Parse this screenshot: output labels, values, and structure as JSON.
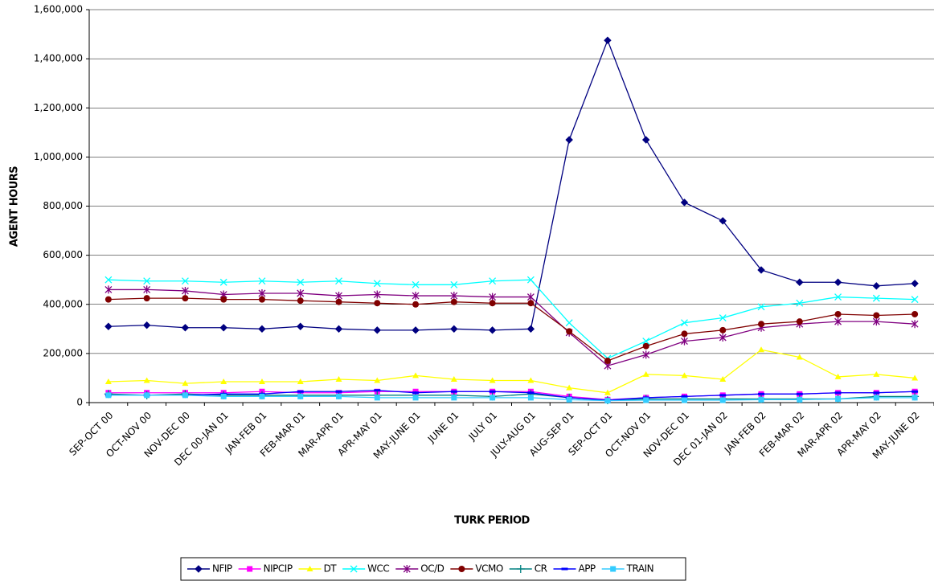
{
  "chart_data": {
    "type": "line",
    "xlabel": "TURK PERIOD",
    "ylabel": "AGENT HOURS",
    "categories": [
      "SEP-OCT 00",
      "OCT-NOV 00",
      "NOV-DEC 00",
      "DEC 00-JAN 01",
      "JAN-FEB 01",
      "FEB-MAR 01",
      "MAR-APR 01",
      "APR-MAY 01",
      "MAY-JUNE 01",
      "JUNE 01",
      "JULY 01",
      "JULY-AUG 01",
      "AUG-SEP 01",
      "SEP-OCT 01",
      "OCT-NOV 01",
      "NOV-DEC 01",
      "DEC 01-JAN 02",
      "JAN-FEB 02",
      "FEB-MAR 02",
      "MAR-APR 02",
      "APR-MAY 02",
      "MAY-JUNE 02"
    ],
    "ylim": [
      0,
      1600000
    ],
    "yticks": [
      0,
      {
        "value": 200000,
        "label": "200,000"
      },
      {
        "value": 400000,
        "label": "400,000"
      },
      {
        "value": 600000,
        "label": "600,000"
      },
      {
        "value": 800000,
        "label": "800,000"
      },
      {
        "value": 1000000,
        "label": "1,000,000"
      },
      {
        "value": 1200000,
        "label": "1,200,000"
      },
      {
        "value": 1400000,
        "label": "1,400,000"
      },
      {
        "value": 1600000,
        "label": "1,600,000"
      }
    ],
    "grid": true,
    "legend": "bottom",
    "series": [
      {
        "name": "NFIP",
        "color": "#000080",
        "marker": "diamond",
        "values": [
          310000,
          315000,
          305000,
          305000,
          300000,
          310000,
          300000,
          295000,
          295000,
          300000,
          295000,
          300000,
          1070000,
          1475000,
          1070000,
          815000,
          740000,
          540000,
          490000,
          490000,
          475000,
          485000
        ]
      },
      {
        "name": "NIPCIP",
        "color": "#ff00ff",
        "marker": "square",
        "values": [
          40000,
          40000,
          40000,
          40000,
          45000,
          40000,
          40000,
          45000,
          45000,
          45000,
          45000,
          45000,
          25000,
          12000,
          20000,
          25000,
          30000,
          35000,
          35000,
          40000,
          40000,
          45000
        ]
      },
      {
        "name": "DT",
        "color": "#ffff00",
        "marker": "triangle",
        "values": [
          85000,
          90000,
          78000,
          85000,
          85000,
          85000,
          95000,
          90000,
          110000,
          95000,
          90000,
          90000,
          60000,
          40000,
          115000,
          110000,
          95000,
          215000,
          185000,
          105000,
          115000,
          100000
        ]
      },
      {
        "name": "WCC",
        "color": "#00ffff",
        "marker": "x",
        "values": [
          500000,
          495000,
          495000,
          490000,
          495000,
          490000,
          495000,
          485000,
          480000,
          480000,
          495000,
          500000,
          325000,
          180000,
          250000,
          325000,
          345000,
          390000,
          405000,
          430000,
          425000,
          420000
        ]
      },
      {
        "name": "OC/D",
        "color": "#800080",
        "marker": "star",
        "values": [
          460000,
          460000,
          455000,
          440000,
          445000,
          445000,
          435000,
          440000,
          435000,
          435000,
          430000,
          430000,
          285000,
          150000,
          195000,
          250000,
          265000,
          305000,
          320000,
          330000,
          330000,
          320000
        ]
      },
      {
        "name": "VCMO",
        "color": "#800000",
        "marker": "circle",
        "values": [
          420000,
          425000,
          425000,
          420000,
          420000,
          415000,
          410000,
          405000,
          400000,
          410000,
          405000,
          405000,
          290000,
          170000,
          230000,
          280000,
          295000,
          320000,
          330000,
          360000,
          355000,
          360000
        ]
      },
      {
        "name": "CR",
        "color": "#008080",
        "marker": "plus",
        "values": [
          35000,
          30000,
          35000,
          30000,
          30000,
          30000,
          30000,
          30000,
          30000,
          30000,
          25000,
          35000,
          20000,
          10000,
          15000,
          15000,
          15000,
          15000,
          15000,
          15000,
          25000,
          25000
        ]
      },
      {
        "name": "APP",
        "color": "#0000ff",
        "marker": "dash",
        "values": [
          30000,
          30000,
          30000,
          35000,
          35000,
          45000,
          45000,
          50000,
          40000,
          45000,
          45000,
          40000,
          20000,
          10000,
          20000,
          25000,
          30000,
          35000,
          35000,
          40000,
          40000,
          45000
        ]
      },
      {
        "name": "TRAIN",
        "color": "#33ccff",
        "marker": "square",
        "values": [
          30000,
          30000,
          30000,
          25000,
          25000,
          25000,
          25000,
          20000,
          20000,
          20000,
          20000,
          20000,
          12000,
          8000,
          10000,
          10000,
          10000,
          12000,
          12000,
          15000,
          20000,
          20000
        ]
      }
    ]
  }
}
